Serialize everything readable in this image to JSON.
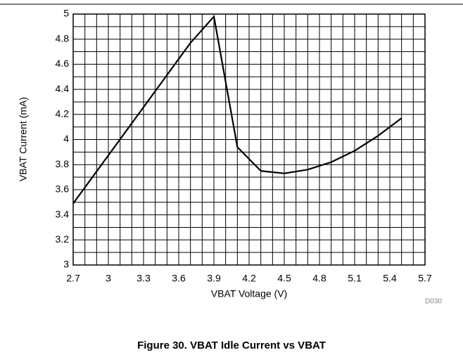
{
  "chart_data": {
    "type": "line",
    "caption": "Figure 30. VBAT Idle Current vs VBAT",
    "figure_id": "D030",
    "x_label": "VBAT Voltage (V)",
    "y_label": "VBAT Current (mA)",
    "x": [
      2.7,
      3.7,
      3.9,
      4.1,
      4.3,
      4.5,
      4.7,
      4.9,
      5.1,
      5.3,
      5.5
    ],
    "series": [
      {
        "color": "#000000",
        "values": [
          3.49,
          4.77,
          4.98,
          3.94,
          3.75,
          3.73,
          3.76,
          3.82,
          3.91,
          4.03,
          4.17
        ]
      }
    ],
    "xlim": [
      2.7,
      5.7
    ],
    "xticks": [
      2.7,
      3,
      3.3,
      3.6,
      3.9,
      4.2,
      4.5,
      4.8,
      5.1,
      5.4,
      5.7
    ],
    "xminorticks": [
      2.8,
      2.9,
      3.1,
      3.2,
      3.4,
      3.5,
      3.7,
      3.8,
      4.0,
      4.1,
      4.3,
      4.4,
      4.6,
      4.7,
      4.9,
      5.0,
      5.2,
      5.3,
      5.5,
      5.6
    ],
    "ylim": [
      3,
      5
    ],
    "yticks": [
      3,
      3.2,
      3.4,
      3.6,
      3.8,
      4,
      4.2,
      4.4,
      4.6,
      4.8,
      5
    ],
    "yminorticks": [
      3.1,
      3.3,
      3.5,
      3.7,
      3.9,
      4.1,
      4.3,
      4.5,
      4.7,
      4.9
    ],
    "grid": true
  }
}
